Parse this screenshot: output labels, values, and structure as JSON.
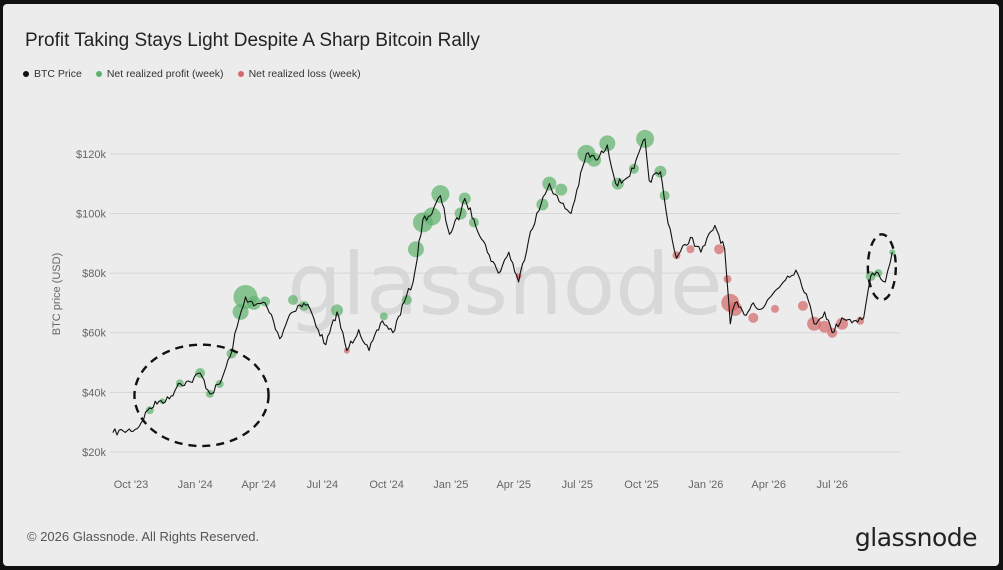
{
  "header": {
    "title": "Profit Taking Stays Light Despite A Sharp Bitcoin Rally"
  },
  "legend": {
    "items": [
      {
        "label": "BTC Price",
        "color": "#111111"
      },
      {
        "label": "Net realized profit (week)",
        "color": "#5fb36d"
      },
      {
        "label": "Net realized loss (week)",
        "color": "#d46a6a"
      }
    ]
  },
  "footer": {
    "copyright": "© 2026 Glassnode. All Rights Reserved.",
    "logo": "glassnode",
    "watermark": "glassnode"
  },
  "chart_data": {
    "type": "line",
    "ylabel": "BTC price (USD)",
    "ylim": [
      20000,
      130000
    ],
    "yticks": [
      20000,
      40000,
      60000,
      80000,
      100000,
      120000
    ],
    "ytick_labels": [
      "$20k",
      "$40k",
      "$60k",
      "$80k",
      "$100k",
      "$120k"
    ],
    "xticks": [
      {
        "date": "2023-10-01",
        "label": "Oct '23"
      },
      {
        "date": "2024-01-01",
        "label": "Jan '24"
      },
      {
        "date": "2024-04-01",
        "label": "Apr '24"
      },
      {
        "date": "2024-07-01",
        "label": "Jul '24"
      },
      {
        "date": "2024-10-01",
        "label": "Oct '24"
      },
      {
        "date": "2025-01-01",
        "label": "Jan '25"
      },
      {
        "date": "2025-04-01",
        "label": "Apr '25"
      },
      {
        "date": "2025-07-01",
        "label": "Jul '25"
      },
      {
        "date": "2025-10-01",
        "label": "Oct '25"
      },
      {
        "date": "2026-01-01",
        "label": "Jan '26"
      },
      {
        "date": "2026-04-01",
        "label": "Apr '26"
      },
      {
        "date": "2026-07-01",
        "label": "Jul '26"
      }
    ],
    "xlim": [
      "2023-09-01",
      "2026-10-06"
    ],
    "grid": true,
    "series": [
      {
        "name": "BTC Price",
        "color": "#111111",
        "points": [
          [
            "2023-09-05",
            26500
          ],
          [
            "2023-09-20",
            27000
          ],
          [
            "2023-10-10",
            27800
          ],
          [
            "2023-10-25",
            34000
          ],
          [
            "2023-11-10",
            37000
          ],
          [
            "2023-11-25",
            37800
          ],
          [
            "2023-12-08",
            43000
          ],
          [
            "2023-12-25",
            43500
          ],
          [
            "2024-01-08",
            46500
          ],
          [
            "2024-01-22",
            39500
          ],
          [
            "2024-02-05",
            42800
          ],
          [
            "2024-02-20",
            52000
          ],
          [
            "2024-03-01",
            62000
          ],
          [
            "2024-03-13",
            72000
          ],
          [
            "2024-03-25",
            69000
          ],
          [
            "2024-04-10",
            70000
          ],
          [
            "2024-04-22",
            64000
          ],
          [
            "2024-05-01",
            58000
          ],
          [
            "2024-05-15",
            66000
          ],
          [
            "2024-05-27",
            69000
          ],
          [
            "2024-06-10",
            69500
          ],
          [
            "2024-06-25",
            61000
          ],
          [
            "2024-07-06",
            56000
          ],
          [
            "2024-07-22",
            67000
          ],
          [
            "2024-08-05",
            54000
          ],
          [
            "2024-08-22",
            61000
          ],
          [
            "2024-09-06",
            54000
          ],
          [
            "2024-09-25",
            64000
          ],
          [
            "2024-10-10",
            60000
          ],
          [
            "2024-10-29",
            72000
          ],
          [
            "2024-11-08",
            77000
          ],
          [
            "2024-11-22",
            98000
          ],
          [
            "2024-12-05",
            100000
          ],
          [
            "2024-12-17",
            106000
          ],
          [
            "2024-12-30",
            93000
          ],
          [
            "2025-01-15",
            100000
          ],
          [
            "2025-01-21",
            105000
          ],
          [
            "2025-02-03",
            98000
          ],
          [
            "2025-02-25",
            86000
          ],
          [
            "2025-03-10",
            80000
          ],
          [
            "2025-03-25",
            87000
          ],
          [
            "2025-04-08",
            77000
          ],
          [
            "2025-04-25",
            94000
          ],
          [
            "2025-05-10",
            103000
          ],
          [
            "2025-05-22",
            110000
          ],
          [
            "2025-06-05",
            104000
          ],
          [
            "2025-06-22",
            100000
          ],
          [
            "2025-07-14",
            120000
          ],
          [
            "2025-07-30",
            118000
          ],
          [
            "2025-08-13",
            123000
          ],
          [
            "2025-08-25",
            110000
          ],
          [
            "2025-09-05",
            111000
          ],
          [
            "2025-09-20",
            115000
          ],
          [
            "2025-10-06",
            125000
          ],
          [
            "2025-10-12",
            111000
          ],
          [
            "2025-10-28",
            114000
          ],
          [
            "2025-11-05",
            101000
          ],
          [
            "2025-11-20",
            85000
          ],
          [
            "2025-12-10",
            92000
          ],
          [
            "2025-12-25",
            87000
          ],
          [
            "2026-01-14",
            96000
          ],
          [
            "2026-01-28",
            88000
          ],
          [
            "2026-02-05",
            63000
          ],
          [
            "2026-02-12",
            70000
          ],
          [
            "2026-02-25",
            66000
          ],
          [
            "2026-03-10",
            70000
          ],
          [
            "2026-03-22",
            68000
          ],
          [
            "2026-04-10",
            74000
          ],
          [
            "2026-04-28",
            79000
          ],
          [
            "2026-05-10",
            81000
          ],
          [
            "2026-05-25",
            73000
          ],
          [
            "2026-06-05",
            63000
          ],
          [
            "2026-06-20",
            67000
          ],
          [
            "2026-07-01",
            60000
          ],
          [
            "2026-07-15",
            65000
          ],
          [
            "2026-08-01",
            64000
          ],
          [
            "2026-08-15",
            65000
          ],
          [
            "2026-08-25",
            79000
          ],
          [
            "2026-09-05",
            80000
          ],
          [
            "2026-09-15",
            77000
          ],
          [
            "2026-09-25",
            87000
          ]
        ]
      },
      {
        "name": "Net realized profit (week)",
        "color": "#5fb36d",
        "points": [
          [
            "2023-10-28",
            34000,
            4
          ],
          [
            "2023-11-15",
            37000,
            3
          ],
          [
            "2023-12-10",
            43000,
            4
          ],
          [
            "2024-01-08",
            46500,
            5
          ],
          [
            "2024-01-22",
            39500,
            4
          ],
          [
            "2024-02-05",
            42800,
            4
          ],
          [
            "2024-02-22",
            53000,
            5
          ],
          [
            "2024-03-06",
            67000,
            8
          ],
          [
            "2024-03-13",
            72000,
            12
          ],
          [
            "2024-03-25",
            70000,
            7
          ],
          [
            "2024-04-10",
            70500,
            5
          ],
          [
            "2024-05-20",
            71000,
            5
          ],
          [
            "2024-06-05",
            69000,
            5
          ],
          [
            "2024-07-22",
            67500,
            6
          ],
          [
            "2024-09-27",
            65500,
            4
          ],
          [
            "2024-10-30",
            71000,
            5
          ],
          [
            "2024-11-12",
            88000,
            8
          ],
          [
            "2024-11-22",
            97000,
            10
          ],
          [
            "2024-12-05",
            99000,
            9
          ],
          [
            "2024-12-17",
            106500,
            9
          ],
          [
            "2025-01-15",
            100000,
            6
          ],
          [
            "2025-01-21",
            105000,
            6
          ],
          [
            "2025-02-03",
            97000,
            5
          ],
          [
            "2025-05-12",
            103000,
            6
          ],
          [
            "2025-05-22",
            110000,
            7
          ],
          [
            "2025-06-08",
            108000,
            6
          ],
          [
            "2025-07-14",
            120000,
            9
          ],
          [
            "2025-07-25",
            118000,
            7
          ],
          [
            "2025-08-13",
            123500,
            8
          ],
          [
            "2025-08-28",
            110000,
            6
          ],
          [
            "2025-09-20",
            115000,
            5
          ],
          [
            "2025-10-06",
            125000,
            9
          ],
          [
            "2025-10-28",
            114000,
            6
          ],
          [
            "2025-11-03",
            106000,
            5
          ],
          [
            "2026-08-25",
            79000,
            5
          ],
          [
            "2026-09-05",
            80000,
            4
          ],
          [
            "2026-09-25",
            87000,
            3
          ]
        ]
      },
      {
        "name": "Net realized loss (week)",
        "color": "#d46a6a",
        "points": [
          [
            "2024-08-05",
            54000,
            3
          ],
          [
            "2025-04-08",
            79000,
            3
          ],
          [
            "2025-11-20",
            86000,
            4
          ],
          [
            "2025-12-10",
            88000,
            4
          ],
          [
            "2026-01-20",
            88000,
            5
          ],
          [
            "2026-02-01",
            78000,
            4
          ],
          [
            "2026-02-05",
            70000,
            9
          ],
          [
            "2026-02-12",
            68000,
            7
          ],
          [
            "2026-03-10",
            65000,
            5
          ],
          [
            "2026-04-10",
            68000,
            4
          ],
          [
            "2026-05-20",
            69000,
            5
          ],
          [
            "2026-06-05",
            63000,
            7
          ],
          [
            "2026-06-20",
            62000,
            6
          ],
          [
            "2026-07-01",
            60000,
            5
          ],
          [
            "2026-07-15",
            63000,
            6
          ],
          [
            "2026-08-10",
            64000,
            4
          ]
        ]
      }
    ],
    "annotations": [
      {
        "type": "dashed-ellipse",
        "center": [
          "2024-01-10",
          39000
        ],
        "radius": [
          "2024-04-15",
          17000
        ]
      },
      {
        "type": "dashed-ellipse",
        "center": [
          "2026-09-10",
          82000
        ],
        "radius": [
          "2026-09-30",
          11000
        ]
      }
    ]
  }
}
